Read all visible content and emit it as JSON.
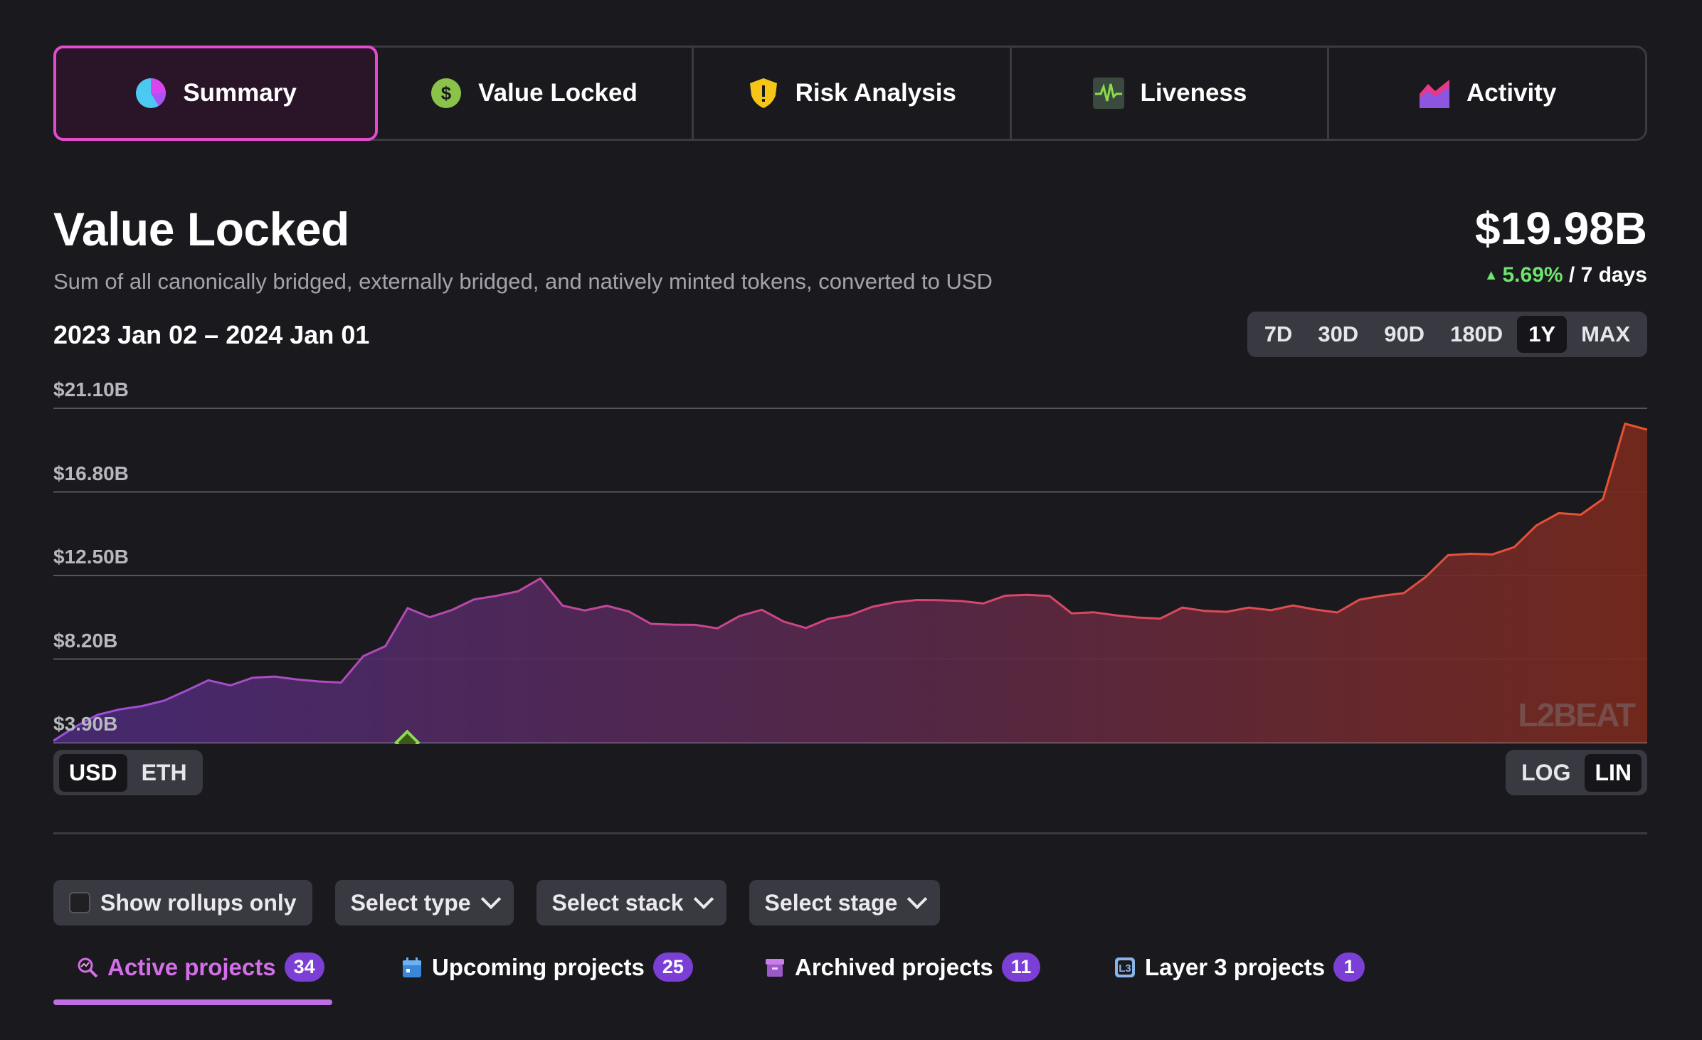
{
  "tabs": [
    {
      "label": "Summary",
      "icon": "pie-chart-icon",
      "active": true
    },
    {
      "label": "Value Locked",
      "icon": "dollar-coin-icon",
      "active": false
    },
    {
      "label": "Risk Analysis",
      "icon": "shield-warning-icon",
      "active": false
    },
    {
      "label": "Liveness",
      "icon": "pulse-icon",
      "active": false
    },
    {
      "label": "Activity",
      "icon": "area-chart-icon",
      "active": false
    }
  ],
  "header": {
    "title": "Value Locked",
    "subtitle": "Sum of all canonically bridged, externally bridged, and natively minted tokens, converted to USD",
    "total": "$19.98B",
    "change_pct": "5.69%",
    "change_period": "/ 7 days"
  },
  "range": {
    "date_range": "2023 Jan 02 – 2024 Jan 01",
    "options": [
      "7D",
      "30D",
      "90D",
      "180D",
      "1Y",
      "MAX"
    ],
    "selected": "1Y"
  },
  "currency": {
    "options": [
      "USD",
      "ETH"
    ],
    "selected": "USD"
  },
  "scale": {
    "options": [
      "LOG",
      "LIN"
    ],
    "selected": "LIN"
  },
  "watermark": "L2BEAT",
  "chart_data": {
    "type": "area",
    "x_start": "2023 Jan 02",
    "x_end": "2024 Jan 01",
    "y_tick_labels": [
      "$21.10B",
      "$16.80B",
      "$12.50B",
      "$8.20B",
      "$3.90B"
    ],
    "ylim": [
      3.9,
      21.1
    ],
    "unit": "B USD",
    "grid": true,
    "marker_fraction": 0.222,
    "values": [
      4.0,
      4.6,
      5.2,
      5.6,
      5.9,
      6.2,
      6.6,
      7.0,
      6.7,
      7.2,
      7.4,
      7.3,
      7.1,
      6.9,
      8.2,
      8.8,
      10.9,
      10.5,
      10.8,
      11.2,
      11.3,
      11.6,
      12.4,
      11.1,
      10.8,
      10.9,
      10.5,
      9.9,
      10.0,
      10.1,
      9.9,
      10.4,
      10.6,
      10.0,
      9.8,
      10.4,
      10.6,
      10.9,
      11.0,
      11.1,
      11.2,
      11.3,
      11.2,
      11.5,
      11.4,
      11.3,
      10.5,
      10.7,
      10.6,
      10.4,
      10.2,
      10.7,
      10.6,
      10.7,
      11.0,
      10.8,
      10.9,
      10.6,
      10.5,
      11.3,
      11.6,
      11.7,
      12.4,
      13.4,
      13.5,
      13.6,
      14.1,
      15.2,
      15.7,
      15.5,
      16.3,
      20.3,
      20.0
    ]
  },
  "filters": {
    "rollups_only": "Show rollups only",
    "type": "Select type",
    "stack": "Select stack",
    "stage": "Select stage"
  },
  "project_tabs": [
    {
      "label": "Active projects",
      "count": "34",
      "icon": "magnify-chart-icon",
      "active": true
    },
    {
      "label": "Upcoming projects",
      "count": "25",
      "icon": "calendar-icon",
      "active": false
    },
    {
      "label": "Archived projects",
      "count": "11",
      "icon": "archive-box-icon",
      "active": false
    },
    {
      "label": "Layer 3 projects",
      "count": "1",
      "icon": "layer3-icon",
      "active": false
    }
  ]
}
